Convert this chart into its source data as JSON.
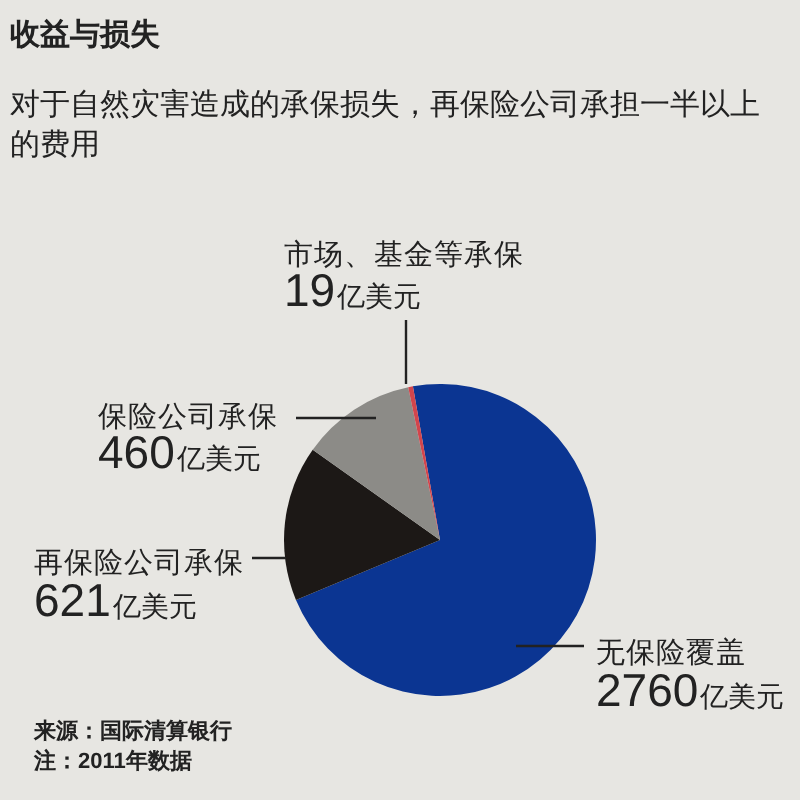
{
  "chart_data": {
    "type": "pie",
    "title": "收益与损失",
    "subtitle": "对于自然灾害造成的承保损失，再保险公司承担一半以上的费用",
    "categories": [
      "无保险覆盖",
      "再保险公司承保",
      "保险公司承保",
      "市场、基金等承保"
    ],
    "values": [
      2760,
      621,
      460,
      19
    ],
    "value_labels": [
      "2760亿美元",
      "621亿美元",
      "460亿美元",
      "19亿美元"
    ],
    "colors": [
      "#0b3592",
      "#1c1816",
      "#8c8b87",
      "#d2454c"
    ],
    "annotations": [
      "来源：国际清算银行",
      "注：2011年数据"
    ]
  }
}
